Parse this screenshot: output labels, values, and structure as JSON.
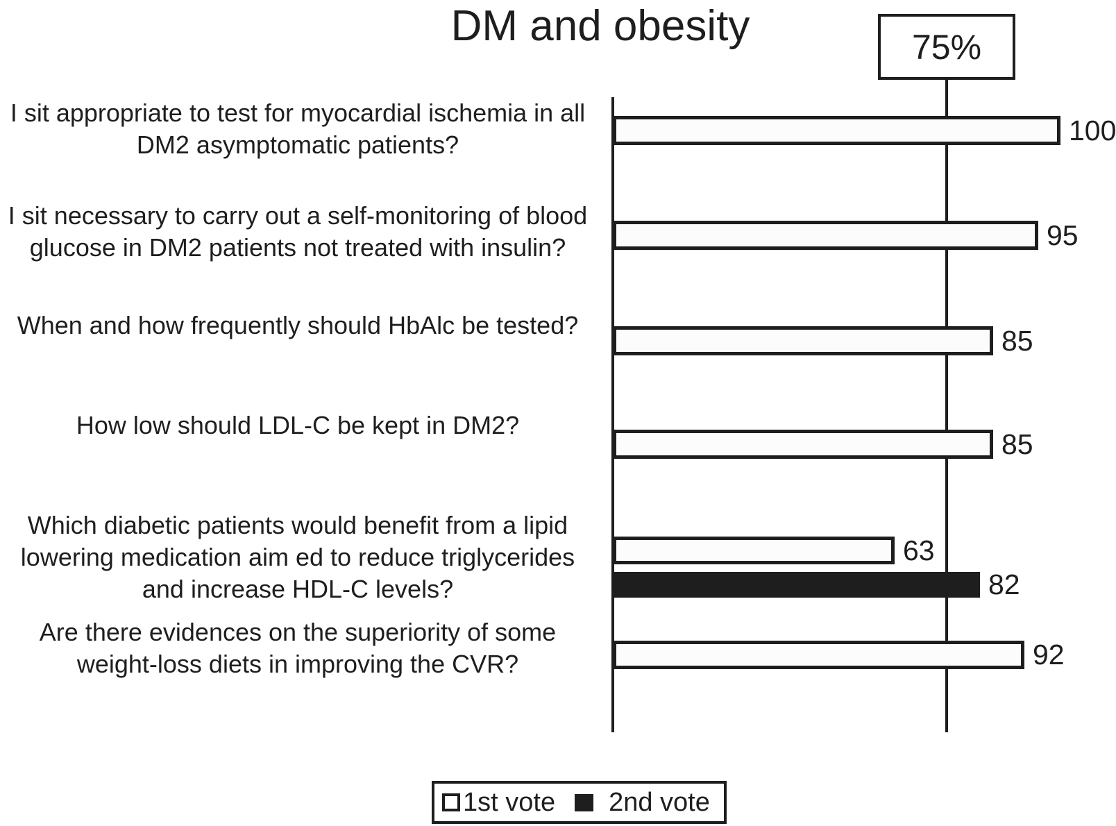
{
  "colors": {
    "ink": "#1e1e1e",
    "bar_fill": "#fcfcfc",
    "background": "#ffffff"
  },
  "chart_data": {
    "type": "bar",
    "orientation": "horizontal",
    "title": "DM and obesity",
    "xlim": [
      0,
      100
    ],
    "grid": false,
    "reference_line": {
      "value": 75,
      "label": "75%"
    },
    "legend_position": "bottom",
    "categories": [
      "I sit appropriate to test for myocardial ischemia in all DM2 asymptomatic patients?",
      "I sit necessary to carry out a self-monitoring of blood glucose in DM2 patients not treated with insulin?",
      "When and how frequently should HbAlc be tested?",
      "How low should LDL-C be kept in DM2?",
      "Which diabetic patients would benefit from a lipid lowering medication aim ed to reduce triglycerides and increase HDL-C levels?",
      "Are there evidences on the superiority of some weight-loss diets in improving the CVR?"
    ],
    "series": [
      {
        "name": "1st vote",
        "values": [
          100,
          95,
          85,
          85,
          63,
          92
        ]
      },
      {
        "name": "2nd vote",
        "values": [
          null,
          null,
          null,
          null,
          82,
          null
        ]
      }
    ],
    "bars": [
      {
        "category_index": 0,
        "series": "1st vote",
        "value": 100
      },
      {
        "category_index": 1,
        "series": "1st vote",
        "value": 95
      },
      {
        "category_index": 2,
        "series": "1st vote",
        "value": 85
      },
      {
        "category_index": 3,
        "series": "1st vote",
        "value": 85
      },
      {
        "category_index": 4,
        "series": "1st vote",
        "value": 63
      },
      {
        "category_index": 4,
        "series": "2nd vote",
        "value": 82
      },
      {
        "category_index": 5,
        "series": "1st vote",
        "value": 92
      }
    ]
  }
}
